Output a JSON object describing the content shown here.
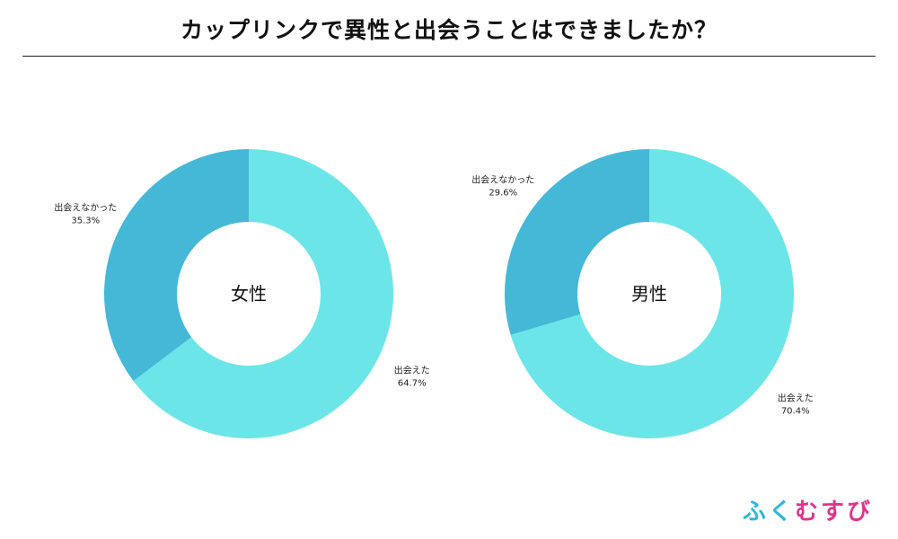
{
  "title": "カップリンクで異性と出会うことはできましたか？",
  "colors": {
    "met": "#6ce5e8",
    "not_met": "#44b8d6",
    "logo": [
      "#2fb6d8",
      "#2fb6d8",
      "#e0338b",
      "#e0338b",
      "#e0338b"
    ]
  },
  "logo_text": [
    "ふ",
    "く",
    "む",
    "す",
    "び"
  ],
  "chart_data": [
    {
      "type": "pie",
      "center_label": "女性",
      "slices": [
        {
          "label": "出会えた",
          "value": 64.7,
          "value_label": "64.7%",
          "color": "#6ce5e8"
        },
        {
          "label": "出会えなかった",
          "value": 35.3,
          "value_label": "35.3%",
          "color": "#44b8d6"
        }
      ]
    },
    {
      "type": "pie",
      "center_label": "男性",
      "slices": [
        {
          "label": "出会えた",
          "value": 70.4,
          "value_label": "70.4%",
          "color": "#6ce5e8"
        },
        {
          "label": "出会えなかった",
          "value": 29.6,
          "value_label": "29.6%",
          "color": "#44b8d6"
        }
      ]
    }
  ]
}
